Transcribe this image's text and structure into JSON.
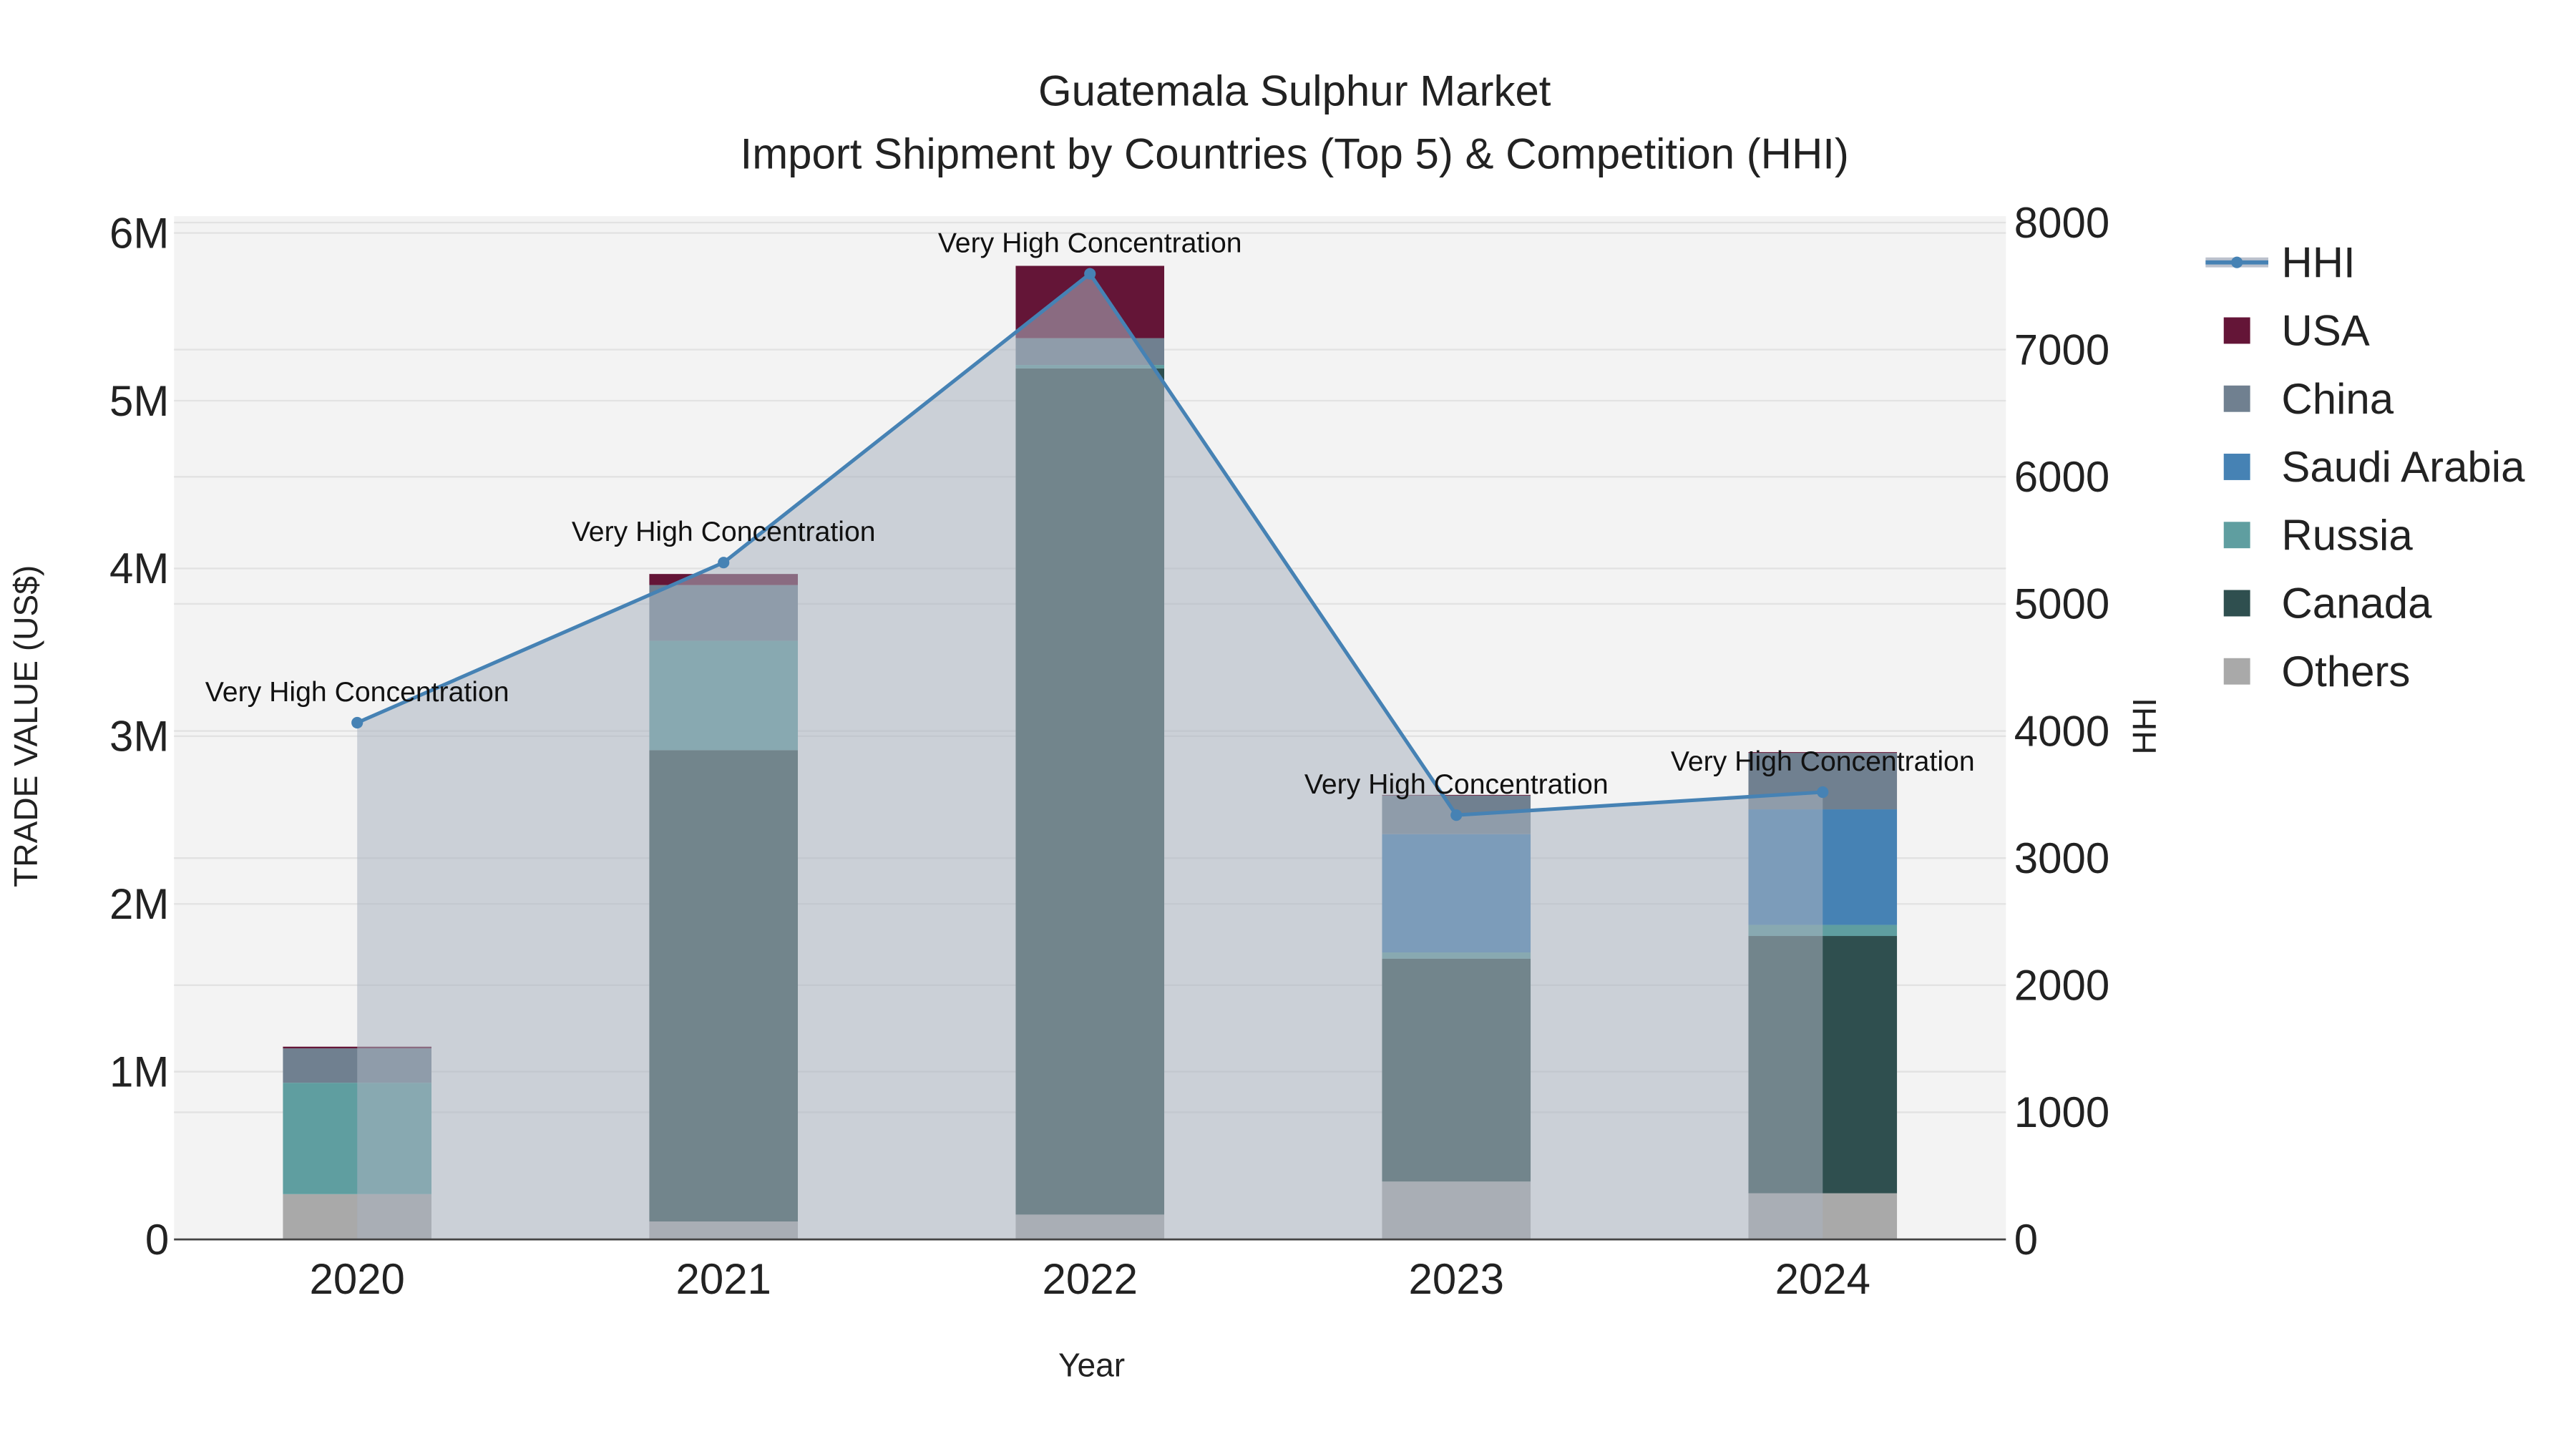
{
  "chart_data": {
    "type": "bar",
    "stacked": true,
    "title": "Guatemala Sulphur Market",
    "subtitle": "Import Shipment by Countries (Top 5) & Competition (HHI)",
    "xlabel": "Year",
    "ylabel": "TRADE VALUE (US$)",
    "y2label": "HHI",
    "categories": [
      "2020",
      "2021",
      "2022",
      "2023",
      "2024"
    ],
    "ylim": [
      0,
      6100000
    ],
    "y2lim": [
      0,
      8050
    ],
    "yticks": [
      0,
      1000000,
      2000000,
      3000000,
      4000000,
      5000000,
      6000000
    ],
    "ytick_labels": [
      "0",
      "1M",
      "2M",
      "3M",
      "4M",
      "5M",
      "6M"
    ],
    "y2ticks": [
      0,
      1000,
      2000,
      3000,
      4000,
      5000,
      6000,
      7000,
      8000
    ],
    "y2tick_labels": [
      "0",
      "1000",
      "2000",
      "3000",
      "4000",
      "5000",
      "6000",
      "7000",
      "8000"
    ],
    "series": [
      {
        "name": "Others",
        "color": "#A9A9A9",
        "values": [
          270000,
          107000,
          148000,
          345000,
          275000
        ]
      },
      {
        "name": "Canada",
        "color": "#2F4F4F",
        "values": [
          0,
          2810000,
          5045000,
          1329000,
          1534000
        ]
      },
      {
        "name": "Russia",
        "color": "#5F9EA0",
        "values": [
          664000,
          652000,
          20000,
          37000,
          66000
        ]
      },
      {
        "name": "Saudi Arabia",
        "color": "#4682B4",
        "values": [
          0,
          0,
          0,
          705000,
          689000
        ]
      },
      {
        "name": "China",
        "color": "#708090",
        "values": [
          205000,
          332000,
          160000,
          230000,
          336000
        ]
      },
      {
        "name": "USA",
        "color": "#641537",
        "values": [
          10000,
          66000,
          431000,
          4000,
          5000
        ]
      }
    ],
    "line": {
      "name": "HHI",
      "color": "#4682B4",
      "axis": "y2",
      "values": [
        4065,
        5325,
        7597,
        3338,
        3519
      ]
    },
    "annotations": [
      "Very High Concentration",
      "Very High Concentration",
      "Very High Concentration",
      "Very High Concentration",
      "Very High Concentration"
    ],
    "legend": [
      "HHI",
      "USA",
      "China",
      "Saudi Arabia",
      "Russia",
      "Canada",
      "Others"
    ],
    "legend_placement": "right",
    "grid": true
  }
}
